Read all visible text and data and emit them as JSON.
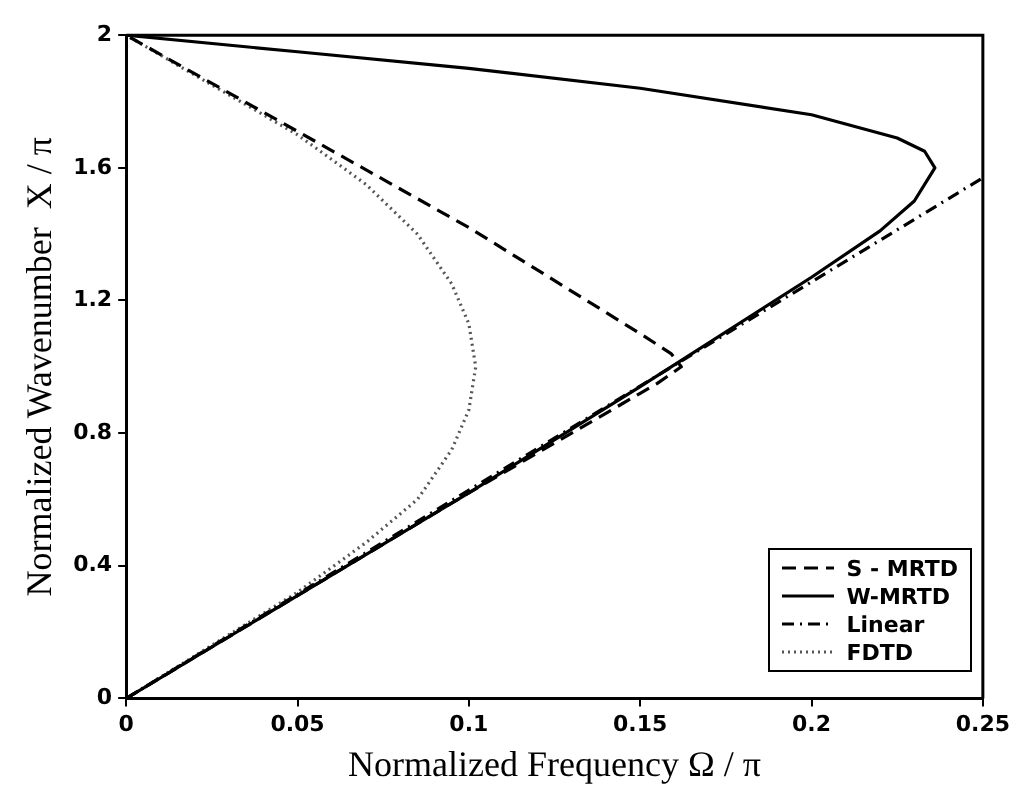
{
  "chart_data": {
    "type": "line",
    "xlabel": "Normalized Frequency Ω / π",
    "ylabel": "Normalized Wavenumber  X / π",
    "xlim": [
      0,
      0.25
    ],
    "ylim": [
      0,
      2
    ],
    "xticks": [
      0,
      0.05,
      0.1,
      0.15,
      0.2,
      0.25
    ],
    "yticks": [
      0,
      0.4,
      0.8,
      1.2,
      1.6,
      2
    ],
    "grid": false,
    "legend": "bottom right",
    "marker": "none",
    "series": [
      {
        "name": "S - MRTD",
        "color": "#000000",
        "line_style": "dashed",
        "x": [
          0,
          0.05,
          0.1,
          0.15,
          0.155,
          0.162,
          0.159,
          0.15,
          0.1,
          0.05,
          0
        ],
        "values": [
          0,
          0.31,
          0.62,
          0.92,
          0.95,
          1.0,
          1.04,
          1.1,
          1.42,
          1.71,
          2
        ]
      },
      {
        "name": "W-MRTD",
        "color": "#000000",
        "line_style": "solid",
        "x": [
          0,
          0.05,
          0.1,
          0.15,
          0.2,
          0.22,
          0.23,
          0.236,
          0.233,
          0.225,
          0.2,
          0.15,
          0.1,
          0.05,
          0
        ],
        "values": [
          0,
          0.31,
          0.62,
          0.94,
          1.27,
          1.41,
          1.5,
          1.6,
          1.65,
          1.69,
          1.76,
          1.84,
          1.9,
          1.95,
          2
        ]
      },
      {
        "name": "Linear",
        "color": "#000000",
        "line_style": "dashdot",
        "x": [
          0,
          0.25
        ],
        "values": [
          0,
          1.57
        ]
      },
      {
        "name": "FDTD",
        "color": "#555555",
        "line_style": "dotted",
        "x": [
          0,
          0.05,
          0.07,
          0.085,
          0.095,
          0.1,
          0.102,
          0.1,
          0.095,
          0.085,
          0.07,
          0.05,
          0.03,
          0
        ],
        "values": [
          0,
          0.32,
          0.47,
          0.6,
          0.75,
          0.87,
          1.0,
          1.13,
          1.25,
          1.4,
          1.55,
          1.7,
          1.82,
          2
        ]
      }
    ]
  }
}
